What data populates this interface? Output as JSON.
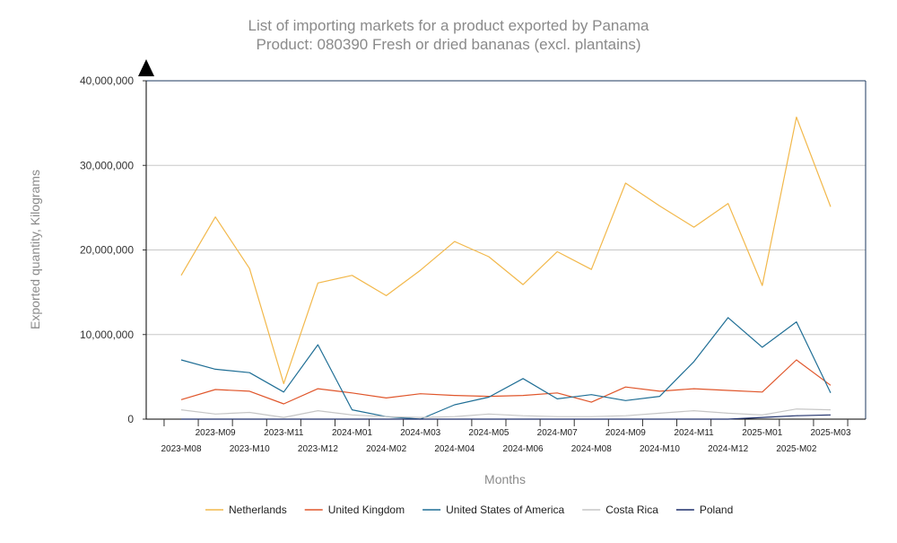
{
  "chart_data": {
    "type": "line",
    "title": "List of importing markets for a product exported by Panama",
    "subtitle": "Product: 080390 Fresh or dried bananas (excl. plantains)",
    "xlabel": "Months",
    "ylabel": "Exported quantity, Kilograms",
    "ylim": [
      0,
      40000000
    ],
    "yticks": [
      0,
      10000000,
      20000000,
      30000000,
      40000000
    ],
    "ytick_labels": [
      "0",
      "10,000,000",
      "20,000,000",
      "30,000,000",
      "40,000,000"
    ],
    "grid": true,
    "legend_position": "bottom",
    "categories": [
      "2023-M08",
      "2023-M09",
      "2023-M10",
      "2023-M11",
      "2023-M12",
      "2024-M01",
      "2024-M02",
      "2024-M03",
      "2024-M04",
      "2024-M05",
      "2024-M06",
      "2024-M07",
      "2024-M08",
      "2024-M09",
      "2024-M10",
      "2024-M11",
      "2024-M12",
      "2025-M01",
      "2025-M02",
      "2025-M03"
    ],
    "series": [
      {
        "name": "Netherlands",
        "color": "#f2b84b",
        "values": [
          17000000,
          23900000,
          17800000,
          4200000,
          16100000,
          17000000,
          14600000,
          17600000,
          21000000,
          19200000,
          15900000,
          19800000,
          17700000,
          27900000,
          25200000,
          22700000,
          25500000,
          15800000,
          35700000,
          25100000
        ]
      },
      {
        "name": "United Kingdom",
        "color": "#e0562b",
        "values": [
          2300000,
          3500000,
          3300000,
          1800000,
          3600000,
          3100000,
          2500000,
          3000000,
          2800000,
          2700000,
          2800000,
          3100000,
          2000000,
          3800000,
          3300000,
          3600000,
          3400000,
          3200000,
          7000000,
          4000000
        ]
      },
      {
        "name": "United States of America",
        "color": "#1f6e95",
        "values": [
          7000000,
          5900000,
          5500000,
          3200000,
          8800000,
          1100000,
          300000,
          0,
          1700000,
          2600000,
          4800000,
          2400000,
          2900000,
          2200000,
          2700000,
          6800000,
          12000000,
          8500000,
          11500000,
          3100000
        ]
      },
      {
        "name": "Costa Rica",
        "color": "#c6c6c6",
        "values": [
          1100000,
          600000,
          800000,
          200000,
          1000000,
          500000,
          300000,
          200000,
          300000,
          600000,
          400000,
          300000,
          300000,
          400000,
          700000,
          1000000,
          700000,
          500000,
          1200000,
          1100000
        ]
      },
      {
        "name": "Poland",
        "color": "#1e2f6b",
        "values": [
          0,
          0,
          0,
          0,
          0,
          0,
          0,
          0,
          0,
          0,
          0,
          0,
          0,
          0,
          0,
          0,
          0,
          200000,
          400000,
          500000
        ]
      }
    ]
  }
}
